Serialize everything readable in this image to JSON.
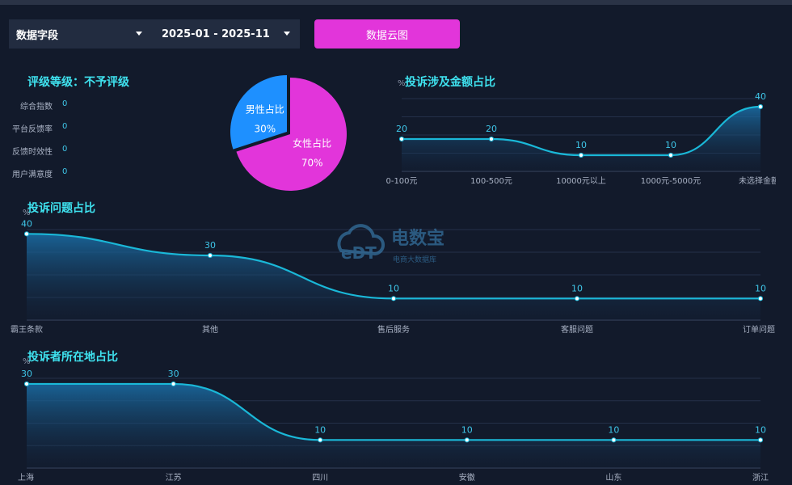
{
  "filters": {
    "field_select": "数据字段",
    "date_range": "2025-01 - 2025-11",
    "cloud_button": "数据云图"
  },
  "rating": {
    "title": "评级等级：不予评级",
    "metrics": [
      {
        "label": "综合指数",
        "value": "0"
      },
      {
        "label": "平台反馈率",
        "value": "0"
      },
      {
        "label": "反馈时效性",
        "value": "0"
      },
      {
        "label": "用户满意度",
        "value": "0"
      }
    ]
  },
  "gender_pie": {
    "slices": [
      {
        "label": "男性占比",
        "value": 30,
        "value_text": "30%",
        "color": "#1e90ff"
      },
      {
        "label": "女性占比",
        "value": 70,
        "value_text": "70%",
        "color": "#e235da"
      }
    ]
  },
  "logo": {
    "name": "电数宝",
    "tagline": "电商大数据库",
    "mark": "eDT"
  },
  "chart_data": [
    {
      "type": "area",
      "title": "投诉涉及金额占比",
      "unit": "%",
      "categories": [
        "0-100元",
        "100-500元",
        "10000元以上",
        "1000元-5000元",
        "未选择金额"
      ],
      "values": [
        20,
        20,
        10,
        10,
        40
      ],
      "ylim": [
        0,
        45
      ],
      "grid": true
    },
    {
      "type": "area",
      "title": "投诉问题占比",
      "unit": "%",
      "categories": [
        "霸王条款",
        "其他",
        "售后服务",
        "客服问题",
        "订单问题"
      ],
      "values": [
        40,
        30,
        10,
        10,
        10
      ],
      "ylim": [
        0,
        42
      ],
      "grid": true
    },
    {
      "type": "area",
      "title": "投诉者所在地占比",
      "unit": "%",
      "categories": [
        "上海",
        "江苏",
        "四川",
        "安徽",
        "山东",
        "浙江"
      ],
      "values": [
        30,
        30,
        10,
        10,
        10,
        10
      ],
      "ylim": [
        0,
        32
      ],
      "grid": true
    }
  ],
  "colors": {
    "accent_cyan": "#3fe3f0",
    "line": "#1ab8d8",
    "pink": "#e235da",
    "blue": "#1e90ff"
  }
}
